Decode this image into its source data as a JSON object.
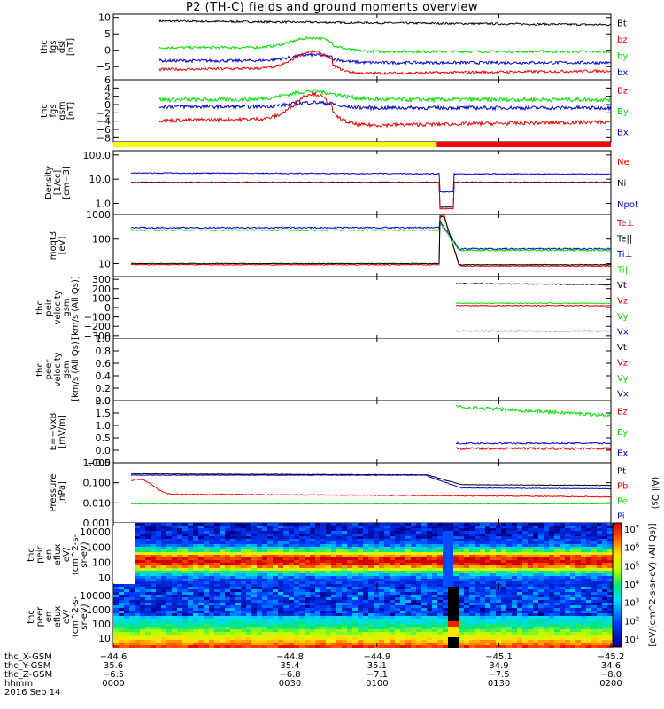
{
  "title": "P2 (TH-C) fields and ground moments overview",
  "date": "2016 Sep 14",
  "colors": {
    "black": "#000000",
    "red": "#e80000",
    "green": "#00e000",
    "blue": "#0000d0",
    "bar_yellow": "#ffff00",
    "bar_red": "#ff0000"
  },
  "chart_data": [
    {
      "type": "line",
      "id": "fgs_dsl",
      "ylabel": [
        "thc",
        "fgs",
        "dsl",
        "[nT]"
      ],
      "yticks": [
        "10",
        "5",
        "0",
        "−5"
      ],
      "ylim": [
        -9,
        11
      ],
      "legend": [
        {
          "name": "Bt",
          "color": "black"
        },
        {
          "name": "bz",
          "color": "red"
        },
        {
          "name": "by",
          "color": "green"
        },
        {
          "name": "bx",
          "color": "blue"
        }
      ]
    },
    {
      "type": "line",
      "id": "fgs_gsm",
      "ylabel": [
        "thc",
        "fgs",
        "gsm",
        "[nT]"
      ],
      "yticks": [
        "6",
        "4",
        "2",
        "0",
        "−2",
        "−4",
        "−6",
        "−8"
      ],
      "ylim": [
        -9,
        6
      ],
      "legend": [
        {
          "name": "Bz",
          "color": "red"
        },
        {
          "name": "By",
          "color": "green"
        },
        {
          "name": "Bx",
          "color": "blue"
        }
      ]
    },
    {
      "type": "bar",
      "id": "mode_bar",
      "segments": [
        {
          "color": "bar_yellow",
          "t_end": "0126"
        },
        {
          "color": "bar_red",
          "t_end": "0200"
        }
      ]
    },
    {
      "type": "line",
      "id": "density",
      "ylabel": [
        "Density",
        "[1/cc]",
        "[cm−3]"
      ],
      "yticks": [
        "100.0",
        "10.0",
        "1.0"
      ],
      "scale": "log",
      "ylim": [
        0.35,
        150
      ],
      "legend": [
        {
          "name": "Ne",
          "color": "red"
        },
        {
          "name": "Ni",
          "color": "black"
        },
        {
          "name": "Npot",
          "color": "blue"
        }
      ]
    },
    {
      "type": "line",
      "id": "temperature",
      "ylabel": [
        "moqt3",
        "[eV]"
      ],
      "yticks": [
        "1000",
        "100",
        "10"
      ],
      "scale": "log",
      "ylim": [
        3,
        1000
      ],
      "legend": [
        {
          "name": "Te⊥",
          "color": "red"
        },
        {
          "name": "Te||",
          "color": "black"
        },
        {
          "name": "Ti⊥",
          "color": "blue"
        },
        {
          "name": "Ti||",
          "color": "green"
        }
      ]
    },
    {
      "type": "line",
      "id": "peir_velocity",
      "ylabel": [
        "thc",
        "peir",
        "velocity",
        "gsm",
        "[km/s (All Qs)]"
      ],
      "yticks": [
        "300",
        "200",
        "100",
        "0",
        "−100",
        "−200",
        "−300"
      ],
      "ylim": [
        -330,
        330
      ],
      "legend": [
        {
          "name": "Vt",
          "color": "black"
        },
        {
          "name": "Vz",
          "color": "red"
        },
        {
          "name": "Vy",
          "color": "green"
        },
        {
          "name": "Vx",
          "color": "blue"
        }
      ]
    },
    {
      "type": "line",
      "id": "peer_velocity",
      "ylabel": [
        "thc",
        "peer",
        "velocity",
        "gsm",
        "[km/s (All Qs)]"
      ],
      "yticks": [
        "1.0",
        "0.8",
        "0.6",
        "0.4",
        "0.2",
        "0.0"
      ],
      "ylim": [
        0,
        1
      ],
      "legend": [
        {
          "name": "Vt",
          "color": "black"
        },
        {
          "name": "Vz",
          "color": "red"
        },
        {
          "name": "Vy",
          "color": "green"
        },
        {
          "name": "Vx",
          "color": "blue"
        }
      ]
    },
    {
      "type": "line",
      "id": "efield",
      "ylabel": [
        "E=−VxB",
        "[mV/m]"
      ],
      "yticks": [
        "2.0",
        "1.5",
        "1.0",
        "0.5",
        "0.0",
        "−0.5"
      ],
      "ylim": [
        -0.5,
        2.0
      ],
      "legend": [
        {
          "name": "Ez",
          "color": "red"
        },
        {
          "name": "Ey",
          "color": "green"
        },
        {
          "name": "Ex",
          "color": "blue"
        }
      ]
    },
    {
      "type": "line",
      "id": "pressure",
      "ylabel": [
        "Pressure",
        "[nPa]"
      ],
      "yticks": [
        "1.000",
        "0.100",
        "0.010",
        "0.001"
      ],
      "scale": "log",
      "ylim": [
        0.001,
        1
      ],
      "legend": [
        {
          "name": "Pt",
          "color": "black"
        },
        {
          "name": "Pb",
          "color": "red"
        },
        {
          "name": "Pe",
          "color": "green"
        },
        {
          "name": "Pi",
          "color": "blue"
        }
      ],
      "legend_note": "(All Qs)"
    },
    {
      "type": "heatmap",
      "id": "peir_eflux",
      "ylabel": [
        "thc",
        "peir",
        "en",
        "eflux",
        "eV/",
        "(cm^2-s-",
        "sr-eV)"
      ],
      "yticks": [
        "10000",
        "1000",
        "100",
        "10"
      ],
      "scale": "log"
    },
    {
      "type": "heatmap",
      "id": "peer_eflux",
      "ylabel": [
        "thc",
        "peer",
        "en",
        "eflux",
        "eV/",
        "(cm^2-s-",
        "sr-eV)"
      ],
      "yticks": [
        "10000",
        "1000",
        "100",
        "10"
      ],
      "scale": "log"
    }
  ],
  "colorbar": {
    "ticks": [
      "10^7",
      "10^6",
      "10^5",
      "10^4",
      "10^3",
      "10^2",
      "10^1"
    ],
    "label": "[eV/(cm^2-s-sr-eV) (All Qs)]"
  },
  "time_axis": {
    "rows": [
      {
        "label": "thc_X-GSM",
        "values": [
          "−44.6",
          "−44.8",
          "−44.9",
          "−45.1",
          "−45.2"
        ]
      },
      {
        "label": "thc_Y-GSM",
        "values": [
          "35.6",
          "35.4",
          "35.1",
          "34.9",
          "34.6"
        ]
      },
      {
        "label": "thc_Z-GSM",
        "values": [
          "−6.5",
          "−6.8",
          "−7.1",
          "−7.5",
          "−8.0"
        ]
      },
      {
        "label": "hhmm",
        "values": [
          "0000",
          "0030",
          "0100",
          "0130",
          "0200"
        ]
      }
    ]
  }
}
